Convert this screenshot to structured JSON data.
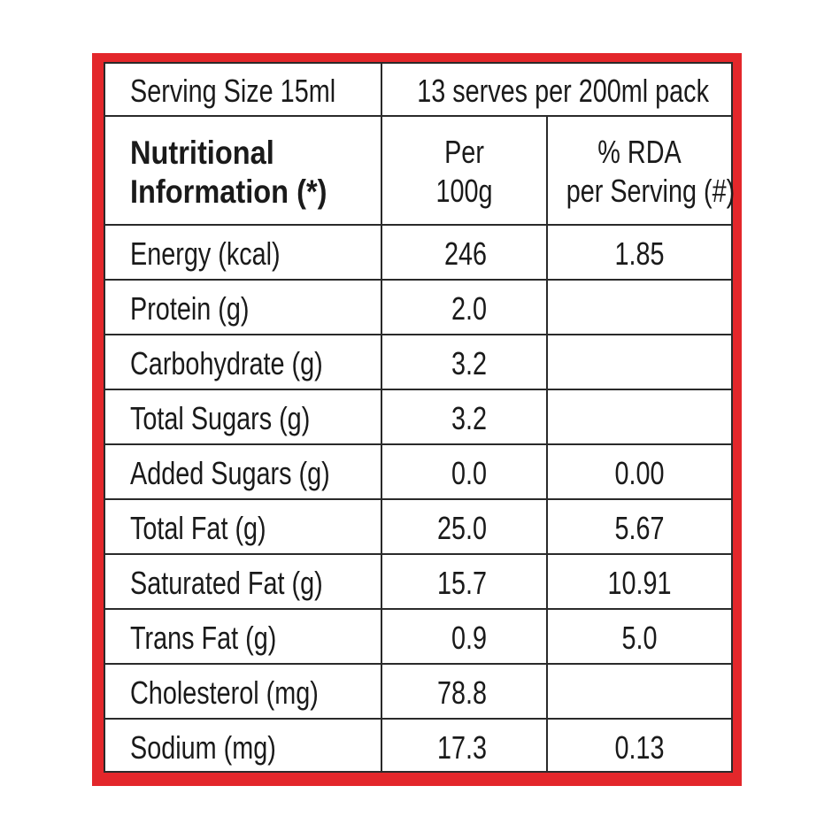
{
  "header": {
    "serving_size": "Serving Size 15ml",
    "serves": "13 serves per 200ml pack",
    "col1_line1": "Nutritional",
    "col1_line2": "Information (*)",
    "col2_line1": "Per",
    "col2_line2": "100g",
    "col3_line1": "% RDA",
    "col3_line2": "per Serving (#)"
  },
  "rows": [
    {
      "nutrient": "Energy (kcal)",
      "per100g": "246",
      "rda": "1.85"
    },
    {
      "nutrient": "Protein (g)",
      "per100g": "2.0",
      "rda": ""
    },
    {
      "nutrient": "Carbohydrate (g)",
      "per100g": "3.2",
      "rda": ""
    },
    {
      "nutrient": "Total Sugars (g)",
      "per100g": "3.2",
      "rda": ""
    },
    {
      "nutrient": "Added Sugars (g)",
      "per100g": "0.0",
      "rda": "0.00"
    },
    {
      "nutrient": "Total Fat (g)",
      "per100g": "25.0",
      "rda": "5.67"
    },
    {
      "nutrient": "Saturated Fat (g)",
      "per100g": "15.7",
      "rda": "10.91"
    },
    {
      "nutrient": "Trans Fat (g)",
      "per100g": "0.9",
      "rda": "5.0"
    },
    {
      "nutrient": "Cholesterol (mg)",
      "per100g": "78.8",
      "rda": ""
    },
    {
      "nutrient": "Sodium (mg)",
      "per100g": "17.3",
      "rda": "0.13"
    }
  ],
  "colors": {
    "frame": "#e3272b",
    "lines": "#2a2a2a"
  }
}
